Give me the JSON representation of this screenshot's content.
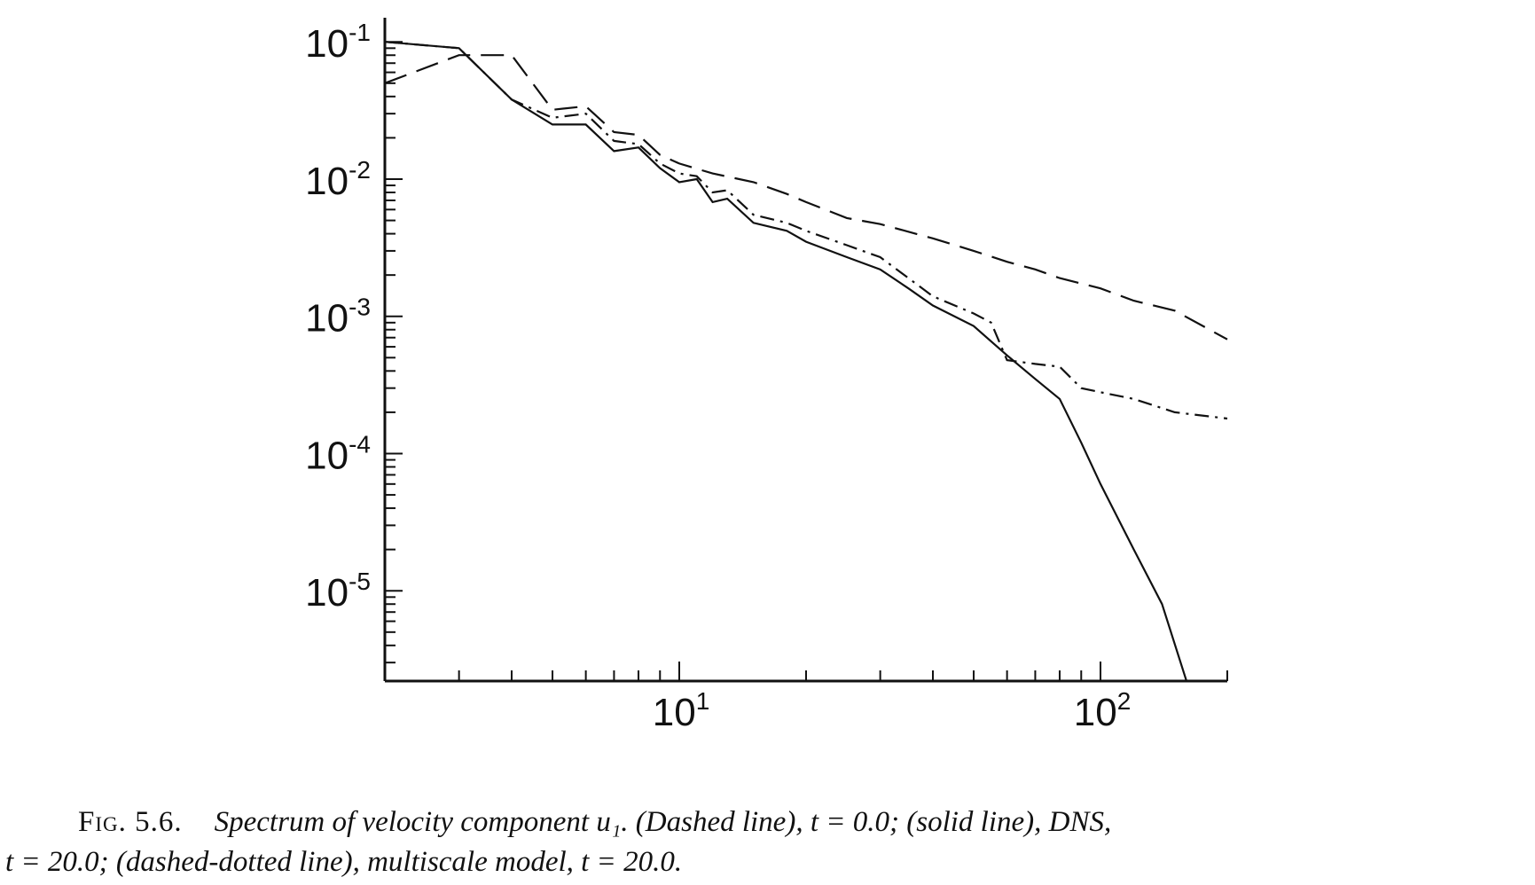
{
  "chart_data": {
    "type": "line",
    "title": "",
    "xlabel": "",
    "ylabel": "",
    "xscale": "log",
    "yscale": "log",
    "xlim": [
      2,
      200
    ],
    "ylim": [
      2.2e-06,
      0.15
    ],
    "x_ticks": [
      {
        "value": 10,
        "base": "10",
        "exp": "1"
      },
      {
        "value": 100,
        "base": "10",
        "exp": "2"
      }
    ],
    "y_ticks": [
      {
        "value": 0.1,
        "base": "10",
        "exp": "-1"
      },
      {
        "value": 0.01,
        "base": "10",
        "exp": "-2"
      },
      {
        "value": 0.001,
        "base": "10",
        "exp": "-3"
      },
      {
        "value": 0.0001,
        "base": "10",
        "exp": "-4"
      },
      {
        "value": 1e-05,
        "base": "10",
        "exp": "-5"
      }
    ],
    "grid": false,
    "legend": "none",
    "series": [
      {
        "style": "dashed",
        "x": [
          2,
          3,
          4,
          5,
          6,
          7,
          8,
          9,
          10,
          12,
          15,
          18,
          20,
          25,
          30,
          40,
          50,
          60,
          70,
          80,
          100,
          120,
          150,
          200
        ],
        "y": [
          0.05,
          0.08,
          0.08,
          0.032,
          0.034,
          0.022,
          0.021,
          0.015,
          0.013,
          0.011,
          0.0095,
          0.0078,
          0.0068,
          0.0052,
          0.0047,
          0.0037,
          0.003,
          0.0025,
          0.0022,
          0.0019,
          0.0016,
          0.0013,
          0.0011,
          0.00068
        ]
      },
      {
        "style": "solid",
        "x": [
          2,
          3,
          4,
          5,
          6,
          7,
          8,
          9,
          10,
          11,
          12,
          13,
          15,
          18,
          20,
          25,
          30,
          35,
          40,
          50,
          60,
          70,
          80,
          90,
          100,
          120,
          140,
          160
        ],
        "y": [
          0.1,
          0.09,
          0.038,
          0.025,
          0.025,
          0.016,
          0.017,
          0.012,
          0.0095,
          0.01,
          0.0068,
          0.0072,
          0.0048,
          0.0042,
          0.0035,
          0.0027,
          0.0022,
          0.0016,
          0.0012,
          0.00085,
          0.00052,
          0.00035,
          0.00025,
          0.00012,
          6e-05,
          2e-05,
          8e-06,
          2.2e-06
        ]
      },
      {
        "style": "dash-dot",
        "x": [
          2,
          3,
          4,
          5,
          6,
          7,
          8,
          9,
          10,
          11,
          12,
          13,
          15,
          18,
          20,
          25,
          30,
          35,
          40,
          50,
          55,
          60,
          70,
          80,
          90,
          100,
          120,
          150,
          200
        ],
        "y": [
          0.1,
          0.09,
          0.038,
          0.028,
          0.03,
          0.019,
          0.018,
          0.013,
          0.011,
          0.0105,
          0.008,
          0.0083,
          0.0055,
          0.0048,
          0.0042,
          0.0033,
          0.0027,
          0.0019,
          0.0014,
          0.00105,
          0.0009,
          0.00048,
          0.00045,
          0.00043,
          0.0003,
          0.00028,
          0.00025,
          0.0002,
          0.00018
        ]
      }
    ]
  },
  "caption": {
    "label": "Fig. 5.6.",
    "line1": "Spectrum of velocity component u₁.  (Dashed line), t = 0.0; (solid line), DNS,",
    "line2": "t = 20.0; (dashed-dotted line), multiscale model, t = 20.0."
  }
}
